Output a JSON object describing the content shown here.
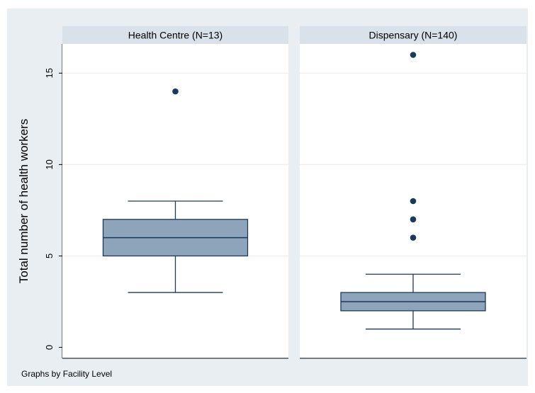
{
  "chart_data": {
    "type": "box",
    "ylabel": "Total number of health workers",
    "yticks": [
      0,
      5,
      10,
      15
    ],
    "ylim": [
      -0.6,
      16.6
    ],
    "grid": true,
    "note": "Graphs by Facility Level",
    "panels": [
      {
        "title": "Health Centre (N=13)",
        "box": {
          "whisker_low": 3,
          "q1": 5,
          "median": 6,
          "q3": 7,
          "whisker_high": 8
        },
        "outliers": [
          14
        ]
      },
      {
        "title": "Dispensary (N=140)",
        "box": {
          "whisker_low": 1,
          "q1": 2,
          "median": 2.5,
          "q3": 3,
          "whisker_high": 4
        },
        "outliers": [
          6,
          7,
          8,
          16
        ]
      }
    ]
  },
  "colors": {
    "outer_bg": "#e9eef2",
    "panel_bg": "#ffffff",
    "strip_bg": "#d9e2ea",
    "box_fill": "#8ea4bb",
    "box_line": "#1a3a5c",
    "marker": "#1a3a5c",
    "grid": "#e6ecf1"
  }
}
